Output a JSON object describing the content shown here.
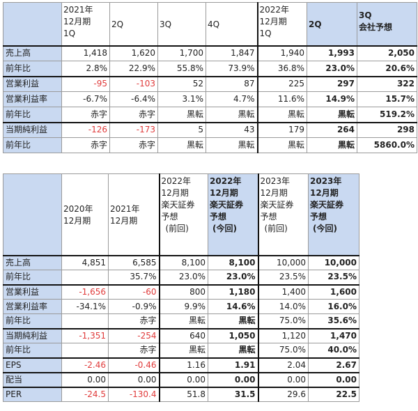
{
  "colors": {
    "header_blue": "#c9d9f1",
    "negative_red": "#e03a3a",
    "thick_border": "#111111"
  },
  "table1": {
    "headers": [
      [],
      [
        "2021年",
        "12月期",
        "1Q"
      ],
      [
        "2Q"
      ],
      [
        "3Q"
      ],
      [
        "4Q"
      ],
      [
        "2022年",
        "12月期",
        "1Q"
      ],
      [
        "2Q"
      ],
      [
        "3Q",
        "会社予想"
      ]
    ],
    "rows": [
      {
        "label": "売上高",
        "cells": [
          "1,418",
          "1,620",
          "1,700",
          "1,847",
          "1,940",
          "1,993",
          "2,050"
        ]
      },
      {
        "label": "前年比",
        "cells": [
          "2.8%",
          "22.9%",
          "55.8%",
          "73.9%",
          "36.8%",
          "23.0%",
          "20.6%"
        ]
      },
      {
        "label": "営業利益",
        "cells": [
          "-95",
          "-103",
          "52",
          "87",
          "225",
          "297",
          "322"
        ]
      },
      {
        "label": "営業利益率",
        "cells": [
          "-6.7%",
          "-6.4%",
          "3.1%",
          "4.7%",
          "11.6%",
          "14.9%",
          "15.7%"
        ]
      },
      {
        "label": "前年比",
        "cells": [
          "赤字",
          "赤字",
          "黒転",
          "黒転",
          "黒転",
          "黒転",
          "519.2%"
        ]
      },
      {
        "label": "当期純利益",
        "cells": [
          "-126",
          "-173",
          "5",
          "43",
          "179",
          "264",
          "298"
        ]
      },
      {
        "label": "前年比",
        "cells": [
          "赤字",
          "赤字",
          "黒転",
          "黒転",
          "黒転",
          "黒転",
          "5860.0%"
        ]
      }
    ]
  },
  "table2": {
    "headers": [
      [],
      [
        "2020年",
        "12月期"
      ],
      [
        "2021年",
        "12月期"
      ],
      [
        "2022年",
        "12月期",
        "楽天証券",
        "予想",
        "(前回)"
      ],
      [
        "2022年",
        "12月期",
        "楽天証券",
        "予想",
        "(今回)"
      ],
      [
        "2023年",
        "12月期",
        "楽天証券",
        "予想",
        "(前回)"
      ],
      [
        "2023年",
        "12月期",
        "楽天証券",
        "予想",
        "(今回)"
      ]
    ],
    "rows": [
      {
        "label": "売上高",
        "cells": [
          "4,851",
          "6,585",
          "8,100",
          "8,100",
          "10,000",
          "10,000"
        ]
      },
      {
        "label": "前年比",
        "cells": [
          "",
          "35.7%",
          "23.0%",
          "23.0%",
          "23.5%",
          "23.5%"
        ]
      },
      {
        "label": "営業利益",
        "cells": [
          "-1,656",
          "-60",
          "800",
          "1,180",
          "1,400",
          "1,600"
        ]
      },
      {
        "label": "営業利益率",
        "cells": [
          "-34.1%",
          "-0.9%",
          "9.9%",
          "14.6%",
          "14.0%",
          "16.0%"
        ]
      },
      {
        "label": "前年比",
        "cells": [
          "",
          "赤字",
          "黒転",
          "黒転",
          "75.0%",
          "35.6%"
        ]
      },
      {
        "label": "当期純利益",
        "cells": [
          "-1,351",
          "-254",
          "640",
          "1,050",
          "1,120",
          "1,470"
        ]
      },
      {
        "label": "前年比",
        "cells": [
          "",
          "赤字",
          "黒転",
          "黒転",
          "75.0%",
          "40.0%"
        ]
      },
      {
        "label": "EPS",
        "cells": [
          "-2.46",
          "-0.46",
          "1.16",
          "1.91",
          "2.04",
          "2.67"
        ]
      },
      {
        "label": "配当",
        "cells": [
          "0.00",
          "0.00",
          "0.00",
          "0.00",
          "0.00",
          "0.00"
        ]
      },
      {
        "label": "PER",
        "cells": [
          "-24.5",
          "-130.4",
          "51.8",
          "31.5",
          "29.6",
          "22.5"
        ]
      }
    ]
  }
}
